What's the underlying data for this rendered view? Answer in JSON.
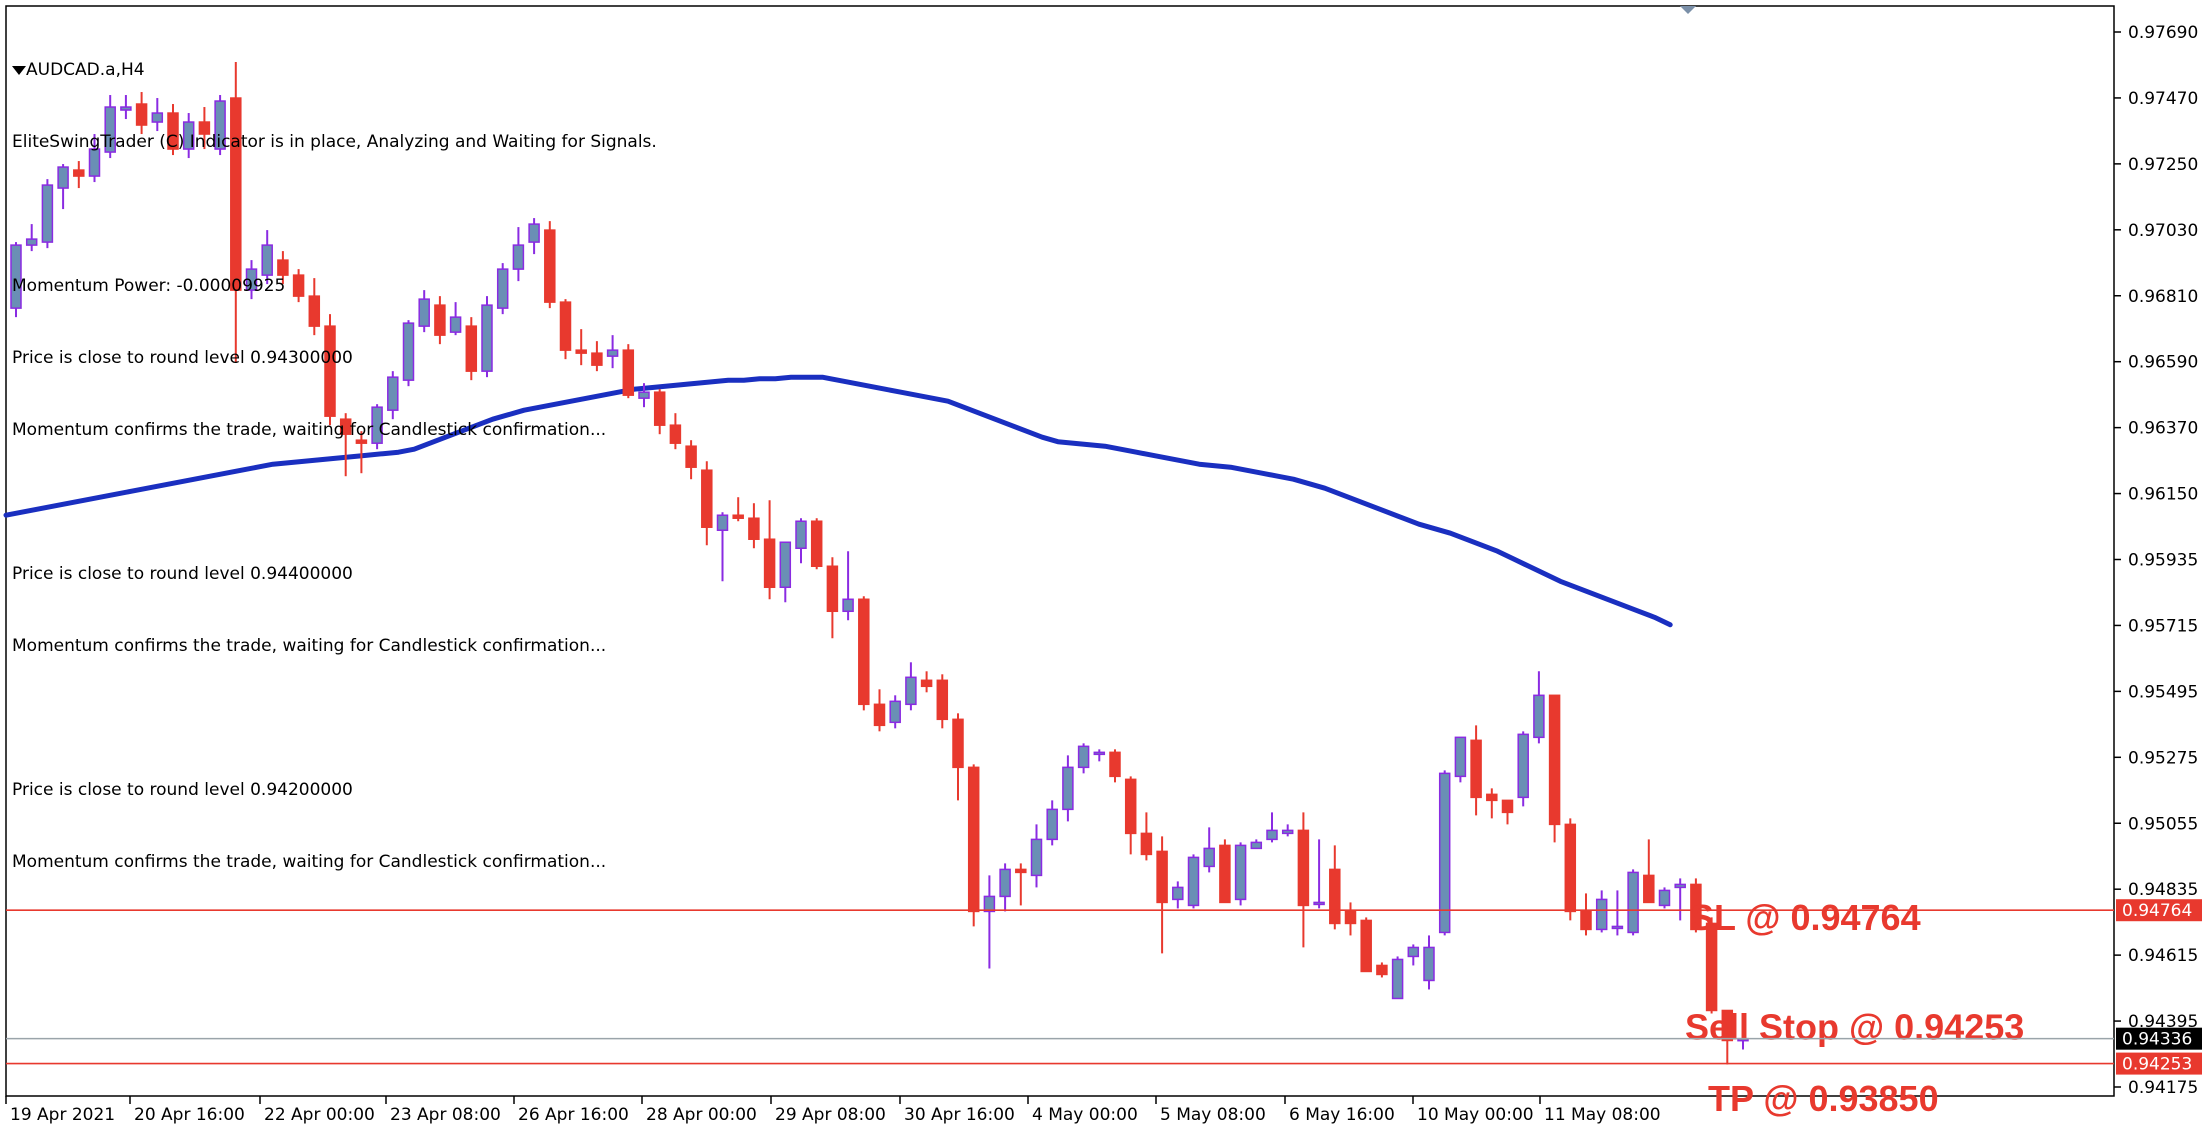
{
  "chart_data": {
    "type": "candlestick",
    "symbol": "AUDCAD.a,H4",
    "indicator_title": "EliteSwingTrader (C) Indicator is in place, Analyzing and Waiting for Signals.",
    "indicator_lines": [
      "Momentum Power: -0.00009925",
      "Price is close to round level 0.94300000",
      "Momentum confirms the trade, waiting for Candlestick confirmation...",
      "",
      "Price is close to round level 0.94400000",
      "Momentum confirms the trade, waiting for Candlestick confirmation...",
      "",
      "Price is close to round level 0.94200000",
      "Momentum confirms the trade, waiting for Candlestick confirmation..."
    ],
    "y_ticks": [
      "0.97690",
      "0.97470",
      "0.97250",
      "0.97030",
      "0.96810",
      "0.96590",
      "0.96370",
      "0.96150",
      "0.95935",
      "0.95715",
      "0.95495",
      "0.95275",
      "0.95055",
      "0.94835",
      "0.94615",
      "0.94395",
      "0.94175"
    ],
    "ylim": [
      0.94175,
      0.9769
    ],
    "x_ticks": [
      "19 Apr 2021",
      "20 Apr 16:00",
      "22 Apr 00:00",
      "23 Apr 08:00",
      "26 Apr 16:00",
      "28 Apr 00:00",
      "29 Apr 08:00",
      "30 Apr 16:00",
      "4 May 00:00",
      "5 May 08:00",
      "6 May 16:00",
      "10 May 00:00",
      "11 May 08:00"
    ],
    "colors": {
      "bull": "#6a8fb5",
      "bull_wick": "#8a2be2",
      "bear": "#e8392e",
      "ma": "#1a2fc0",
      "level": "#e8392e",
      "current": "#9aa4aa"
    },
    "candles": [
      [
        0.9677,
        0.9699,
        0.9674,
        0.9698
      ],
      [
        0.9698,
        0.9705,
        0.9696,
        0.97
      ],
      [
        0.9699,
        0.972,
        0.9697,
        0.9718
      ],
      [
        0.9717,
        0.9725,
        0.971,
        0.9724
      ],
      [
        0.9723,
        0.9726,
        0.9717,
        0.9721
      ],
      [
        0.9721,
        0.9735,
        0.9719,
        0.973
      ],
      [
        0.9729,
        0.9748,
        0.9727,
        0.9744
      ],
      [
        0.9743,
        0.9748,
        0.974,
        0.9744
      ],
      [
        0.9745,
        0.9749,
        0.9735,
        0.9738
      ],
      [
        0.9739,
        0.9747,
        0.9736,
        0.9742
      ],
      [
        0.9742,
        0.9745,
        0.9728,
        0.973
      ],
      [
        0.973,
        0.9742,
        0.9727,
        0.9739
      ],
      [
        0.9739,
        0.9744,
        0.973,
        0.9735
      ],
      [
        0.973,
        0.9748,
        0.9728,
        0.9746
      ],
      [
        0.9747,
        0.9759,
        0.9659,
        0.9683
      ],
      [
        0.9683,
        0.9693,
        0.968,
        0.969
      ],
      [
        0.9688,
        0.9703,
        0.9685,
        0.9698
      ],
      [
        0.9693,
        0.9696,
        0.9685,
        0.9688
      ],
      [
        0.9688,
        0.969,
        0.9679,
        0.9681
      ],
      [
        0.9681,
        0.9687,
        0.9668,
        0.9671
      ],
      [
        0.9671,
        0.9675,
        0.9638,
        0.9641
      ],
      [
        0.964,
        0.9642,
        0.9621,
        0.9635
      ],
      [
        0.9633,
        0.9636,
        0.9622,
        0.9632
      ],
      [
        0.9632,
        0.9645,
        0.963,
        0.9644
      ],
      [
        0.9643,
        0.9656,
        0.964,
        0.9654
      ],
      [
        0.9653,
        0.9673,
        0.9651,
        0.9672
      ],
      [
        0.9671,
        0.9683,
        0.9669,
        0.968
      ],
      [
        0.9678,
        0.9681,
        0.9665,
        0.9668
      ],
      [
        0.9669,
        0.9679,
        0.9668,
        0.9674
      ],
      [
        0.9671,
        0.9674,
        0.9653,
        0.9656
      ],
      [
        0.9656,
        0.9681,
        0.9654,
        0.9678
      ],
      [
        0.9677,
        0.9692,
        0.9675,
        0.969
      ],
      [
        0.969,
        0.9704,
        0.9686,
        0.9698
      ],
      [
        0.9699,
        0.9707,
        0.9695,
        0.9705
      ],
      [
        0.9703,
        0.9706,
        0.9677,
        0.9679
      ],
      [
        0.9679,
        0.968,
        0.966,
        0.9663
      ],
      [
        0.9663,
        0.967,
        0.9658,
        0.9662
      ],
      [
        0.9662,
        0.9666,
        0.9656,
        0.9658
      ],
      [
        0.9661,
        0.9668,
        0.9657,
        0.9663
      ],
      [
        0.9663,
        0.9665,
        0.9647,
        0.9648
      ],
      [
        0.9647,
        0.9652,
        0.9644,
        0.9649
      ],
      [
        0.9649,
        0.965,
        0.9635,
        0.9638
      ],
      [
        0.9638,
        0.9642,
        0.963,
        0.9632
      ],
      [
        0.9631,
        0.9633,
        0.962,
        0.9624
      ],
      [
        0.9623,
        0.9626,
        0.9598,
        0.9604
      ],
      [
        0.9603,
        0.9609,
        0.9586,
        0.9608
      ],
      [
        0.9608,
        0.9614,
        0.9606,
        0.9607
      ],
      [
        0.9607,
        0.9612,
        0.9597,
        0.96
      ],
      [
        0.96,
        0.9613,
        0.958,
        0.9584
      ],
      [
        0.9584,
        0.9599,
        0.9579,
        0.9599
      ],
      [
        0.9597,
        0.9607,
        0.9592,
        0.9606
      ],
      [
        0.9606,
        0.9607,
        0.959,
        0.9591
      ],
      [
        0.9591,
        0.9594,
        0.9567,
        0.9576
      ],
      [
        0.9576,
        0.9596,
        0.9573,
        0.958
      ],
      [
        0.958,
        0.9581,
        0.9543,
        0.9545
      ],
      [
        0.9545,
        0.955,
        0.9536,
        0.9538
      ],
      [
        0.9539,
        0.9548,
        0.9537,
        0.9546
      ],
      [
        0.9545,
        0.9559,
        0.9543,
        0.9554
      ],
      [
        0.9553,
        0.9556,
        0.9549,
        0.9551
      ],
      [
        0.9553,
        0.9555,
        0.9537,
        0.954
      ],
      [
        0.954,
        0.9542,
        0.9513,
        0.9524
      ],
      [
        0.9524,
        0.9525,
        0.9471,
        0.9476
      ],
      [
        0.9476,
        0.9488,
        0.9457,
        0.9481
      ],
      [
        0.9481,
        0.9492,
        0.9476,
        0.949
      ],
      [
        0.949,
        0.9492,
        0.9478,
        0.9489
      ],
      [
        0.9488,
        0.9505,
        0.9484,
        0.95
      ],
      [
        0.95,
        0.9513,
        0.9498,
        0.951
      ],
      [
        0.951,
        0.9528,
        0.9506,
        0.9524
      ],
      [
        0.9524,
        0.9532,
        0.9522,
        0.9531
      ],
      [
        0.9529,
        0.953,
        0.9526,
        0.9529
      ],
      [
        0.9529,
        0.953,
        0.9519,
        0.9521
      ],
      [
        0.952,
        0.9521,
        0.9495,
        0.9502
      ],
      [
        0.9502,
        0.9509,
        0.9493,
        0.9495
      ],
      [
        0.9496,
        0.9501,
        0.9462,
        0.9479
      ],
      [
        0.948,
        0.9486,
        0.9477,
        0.9484
      ],
      [
        0.9478,
        0.9495,
        0.9477,
        0.9494
      ],
      [
        0.9491,
        0.9504,
        0.9489,
        0.9497
      ],
      [
        0.9498,
        0.95,
        0.9479,
        0.9479
      ],
      [
        0.948,
        0.9499,
        0.9478,
        0.9498
      ],
      [
        0.9497,
        0.95,
        0.9497,
        0.9499
      ],
      [
        0.95,
        0.9509,
        0.9499,
        0.9503
      ],
      [
        0.9502,
        0.9505,
        0.9501,
        0.9503
      ],
      [
        0.9503,
        0.9509,
        0.9464,
        0.9478
      ],
      [
        0.9479,
        0.95,
        0.9477,
        0.9479
      ],
      [
        0.949,
        0.9498,
        0.947,
        0.9472
      ],
      [
        0.9476,
        0.9479,
        0.9468,
        0.9472
      ],
      [
        0.9473,
        0.9474,
        0.9456,
        0.9456
      ],
      [
        0.9458,
        0.9459,
        0.9454,
        0.9455
      ],
      [
        0.9447,
        0.9461,
        0.9447,
        0.946
      ],
      [
        0.9461,
        0.9465,
        0.9458,
        0.9464
      ],
      [
        0.9453,
        0.9468,
        0.945,
        0.9464
      ],
      [
        0.9469,
        0.9523,
        0.9468,
        0.9522
      ],
      [
        0.9521,
        0.9534,
        0.9519,
        0.9534
      ],
      [
        0.9533,
        0.9538,
        0.9508,
        0.9514
      ],
      [
        0.9515,
        0.9517,
        0.9507,
        0.9513
      ],
      [
        0.9513,
        0.9513,
        0.9505,
        0.9509
      ],
      [
        0.9514,
        0.9536,
        0.9511,
        0.9535
      ],
      [
        0.9534,
        0.9556,
        0.9532,
        0.9548
      ],
      [
        0.9548,
        0.9547,
        0.9499,
        0.9505
      ],
      [
        0.9505,
        0.9507,
        0.9473,
        0.9476
      ],
      [
        0.9476,
        0.9482,
        0.9468,
        0.947
      ],
      [
        0.947,
        0.9483,
        0.9469,
        0.948
      ],
      [
        0.9471,
        0.9483,
        0.9468,
        0.9471
      ],
      [
        0.9469,
        0.949,
        0.9468,
        0.9489
      ],
      [
        0.9488,
        0.95,
        0.9481,
        0.9479
      ],
      [
        0.9478,
        0.9484,
        0.9477,
        0.9483
      ],
      [
        0.9484,
        0.9487,
        0.9473,
        0.9485
      ],
      [
        0.9485,
        0.9487,
        0.9469,
        0.947
      ],
      [
        0.9472,
        0.9474,
        0.9442,
        0.9443
      ],
      [
        0.9443,
        0.9442,
        0.9425,
        0.9433
      ],
      [
        0.9433,
        0.9435,
        0.943,
        0.94336
      ]
    ],
    "moving_average": [
      0.9608,
      0.9609,
      0.961,
      0.9611,
      0.9612,
      0.9613,
      0.9614,
      0.9615,
      0.9616,
      0.9617,
      0.9618,
      0.9619,
      0.962,
      0.9621,
      0.9622,
      0.9623,
      0.9624,
      0.9625,
      0.96255,
      0.9626,
      0.96265,
      0.9627,
      0.96275,
      0.9628,
      0.96285,
      0.9629,
      0.963,
      0.9632,
      0.9634,
      0.9636,
      0.9638,
      0.964,
      0.96415,
      0.9643,
      0.9644,
      0.9645,
      0.9646,
      0.9647,
      0.9648,
      0.9649,
      0.965,
      0.96505,
      0.9651,
      0.96515,
      0.9652,
      0.96525,
      0.9653,
      0.9653,
      0.96535,
      0.96535,
      0.9654,
      0.9654,
      0.9654,
      0.9653,
      0.9652,
      0.9651,
      0.965,
      0.9649,
      0.9648,
      0.9647,
      0.9646,
      0.9644,
      0.9642,
      0.964,
      0.9638,
      0.9636,
      0.9634,
      0.96325,
      0.9632,
      0.96315,
      0.9631,
      0.963,
      0.9629,
      0.9628,
      0.9627,
      0.9626,
      0.9625,
      0.96245,
      0.9624,
      0.9623,
      0.9622,
      0.9621,
      0.962,
      0.96185,
      0.9617,
      0.9615,
      0.9613,
      0.9611,
      0.9609,
      0.9607,
      0.9605,
      0.96035,
      0.9602,
      0.96,
      0.9598,
      0.9596,
      0.95935,
      0.9591,
      0.95885,
      0.9586,
      0.9584,
      0.9582,
      0.958,
      0.9578,
      0.9576,
      0.9574,
      0.95715
    ],
    "levels": [
      {
        "label": "SL @ 0.94764",
        "price": 0.94764,
        "tag": "0.94764"
      },
      {
        "label": "Sell Stop @ 0.94253",
        "price": 0.94253,
        "tag": "0.94253"
      },
      {
        "label": "TP @ 0.93850",
        "price": 0.9385
      }
    ],
    "current_price": {
      "price": 0.94336,
      "tag": "0.94336"
    }
  }
}
